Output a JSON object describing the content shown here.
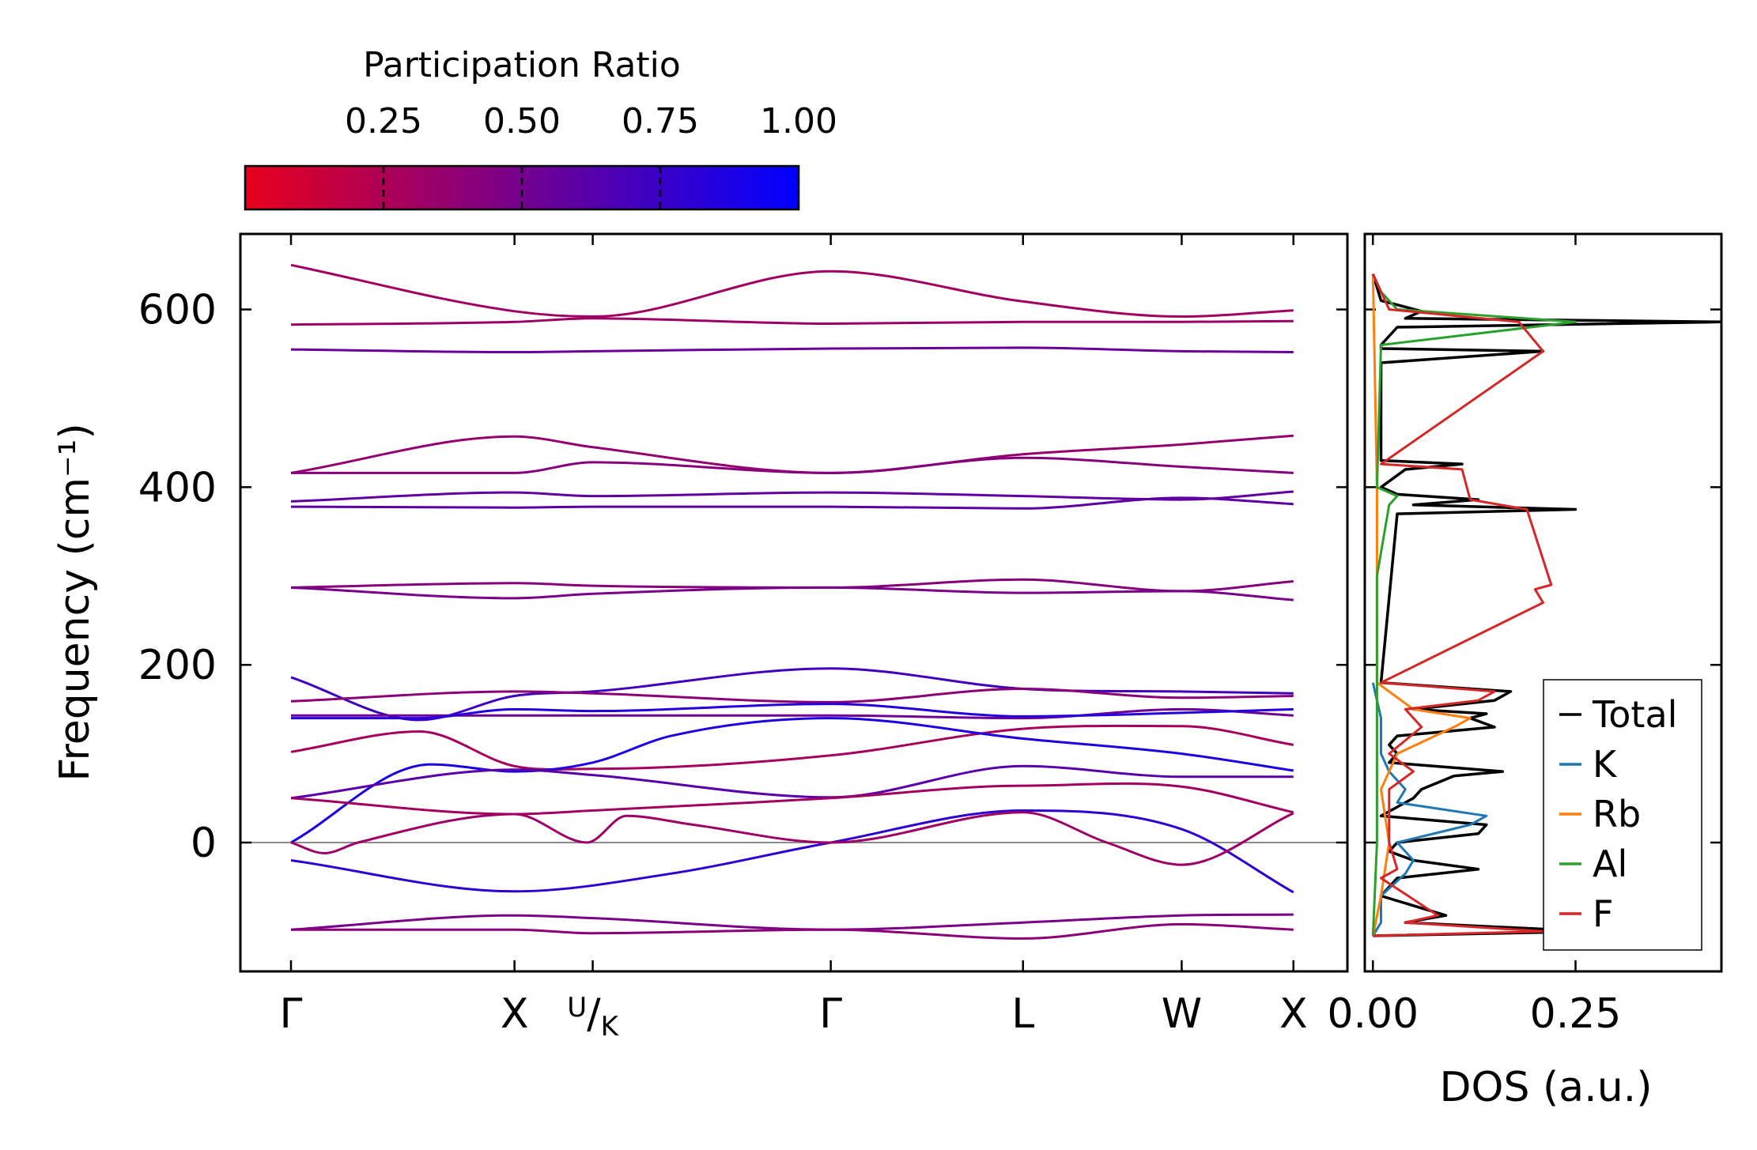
{
  "colors": {
    "low": "#e8001c",
    "high": "#0000ff",
    "zero_line": "#8c8c8c",
    "frame": "#000000"
  },
  "colorbar": {
    "title": "Participation Ratio",
    "range": [
      0.0,
      1.0
    ],
    "ticks": [
      {
        "value": 0.25,
        "label": "0.25"
      },
      {
        "value": 0.5,
        "label": "0.50"
      },
      {
        "value": 0.75,
        "label": "0.75"
      },
      {
        "value": 1.0,
        "label": "1.00"
      }
    ]
  },
  "chart_data": [
    {
      "type": "line",
      "title": "",
      "xlabel": "",
      "ylabel": "Frequency (cm⁻¹)",
      "ylim": [
        -145,
        685
      ],
      "yticks": [
        {
          "value": 0,
          "label": "0"
        },
        {
          "value": 200,
          "label": "200"
        },
        {
          "value": 400,
          "label": "400"
        },
        {
          "value": 600,
          "label": "600"
        }
      ],
      "xlim": [
        0,
        9.0
      ],
      "high_symmetry_points": [
        {
          "x": 0.0,
          "label": "Γ"
        },
        {
          "x": 2.0,
          "label": "X"
        },
        {
          "x": 2.7,
          "label": "U/K"
        },
        {
          "x": 4.83,
          "label": "Γ"
        },
        {
          "x": 6.55,
          "label": "L"
        },
        {
          "x": 7.97,
          "label": "W"
        },
        {
          "x": 8.97,
          "label": "X"
        }
      ],
      "color_encoding": "Participation Ratio",
      "series": [
        {
          "name": "band-1",
          "pr": 0.3,
          "x": [
            0,
            2.0,
            2.7,
            4.83,
            6.55,
            7.97,
            8.97
          ],
          "y": [
            650,
            598,
            592,
            643,
            609,
            592,
            599
          ]
        },
        {
          "name": "band-2",
          "pr": 0.33,
          "x": [
            0,
            2.0,
            2.7,
            4.83,
            6.55,
            7.97,
            8.97
          ],
          "y": [
            583,
            586,
            590,
            584,
            586,
            586,
            587
          ]
        },
        {
          "name": "band-3",
          "pr": 0.55,
          "x": [
            0,
            2.0,
            2.7,
            4.83,
            6.55,
            7.97,
            8.97
          ],
          "y": [
            555,
            552,
            553,
            556,
            557,
            553,
            552
          ]
        },
        {
          "name": "band-4",
          "pr": 0.36,
          "x": [
            0,
            2.0,
            2.7,
            4.83,
            6.55,
            7.97,
            8.97
          ],
          "y": [
            416,
            457,
            445,
            416,
            437,
            448,
            458
          ]
        },
        {
          "name": "band-5",
          "pr": 0.42,
          "x": [
            0,
            2.0,
            2.7,
            4.83,
            6.55,
            7.97,
            8.97
          ],
          "y": [
            416,
            416,
            428,
            416,
            433,
            423,
            416
          ]
        },
        {
          "name": "band-6",
          "pr": 0.58,
          "x": [
            0,
            2.0,
            2.7,
            4.83,
            6.55,
            7.97,
            8.97
          ],
          "y": [
            384,
            394,
            390,
            394,
            390,
            386,
            395
          ]
        },
        {
          "name": "band-7",
          "pr": 0.6,
          "x": [
            0,
            2.0,
            2.7,
            4.83,
            6.55,
            7.97,
            8.97
          ],
          "y": [
            378,
            377,
            378,
            378,
            376,
            388,
            381
          ]
        },
        {
          "name": "band-8",
          "pr": 0.42,
          "x": [
            0,
            2.0,
            2.7,
            4.83,
            6.55,
            7.97,
            8.97
          ],
          "y": [
            287,
            292,
            289,
            287,
            296,
            283,
            294
          ]
        },
        {
          "name": "band-9",
          "pr": 0.48,
          "x": [
            0,
            2.0,
            2.7,
            4.83,
            6.55,
            7.97,
            8.97
          ],
          "y": [
            287,
            275,
            280,
            287,
            281,
            283,
            273
          ]
        },
        {
          "name": "band-10",
          "pr": 0.72,
          "x": [
            0,
            1.15,
            2.0,
            2.7,
            4.83,
            6.55,
            7.97,
            8.97
          ],
          "y": [
            186,
            138,
            165,
            170,
            196,
            173,
            170,
            168
          ]
        },
        {
          "name": "band-11",
          "pr": 0.4,
          "x": [
            0,
            2.0,
            2.7,
            4.83,
            6.55,
            7.97,
            8.97
          ],
          "y": [
            159,
            170,
            168,
            158,
            173,
            163,
            165
          ]
        },
        {
          "name": "band-12",
          "pr": 0.52,
          "x": [
            0,
            2.0,
            2.7,
            4.83,
            6.55,
            7.97,
            8.97
          ],
          "y": [
            143,
            143,
            143,
            143,
            140,
            150,
            143
          ]
        },
        {
          "name": "band-13",
          "pr": 0.85,
          "x": [
            0,
            1.15,
            2.0,
            2.7,
            4.83,
            6.55,
            7.97,
            8.97
          ],
          "y": [
            140,
            140,
            150,
            148,
            156,
            142,
            146,
            150
          ]
        },
        {
          "name": "band-14",
          "pr": 0.28,
          "x": [
            0,
            1.15,
            2.0,
            2.7,
            4.83,
            6.55,
            7.97,
            8.97
          ],
          "y": [
            102,
            125,
            86,
            83,
            98,
            128,
            131,
            110
          ]
        },
        {
          "name": "band-15",
          "pr": 0.88,
          "x": [
            0,
            1.25,
            2.0,
            2.7,
            3.4,
            4.83,
            6.55,
            7.97,
            8.97
          ],
          "y": [
            0,
            88,
            80,
            90,
            120,
            140,
            117,
            100,
            81
          ]
        },
        {
          "name": "band-16",
          "pr": 0.62,
          "x": [
            0,
            2.0,
            2.7,
            4.83,
            6.55,
            7.97,
            8.97
          ],
          "y": [
            50,
            82,
            76,
            51,
            86,
            74,
            74
          ]
        },
        {
          "name": "band-17",
          "pr": 0.3,
          "x": [
            0,
            2.0,
            2.7,
            4.83,
            6.55,
            7.97,
            8.97
          ],
          "y": [
            50,
            32,
            36,
            50,
            64,
            63,
            34
          ]
        },
        {
          "name": "band-18",
          "pr": 0.8,
          "x": [
            0,
            2.0,
            3.4,
            4.83,
            6.55,
            7.97,
            8.97
          ],
          "y": [
            -20,
            -55,
            -35,
            0,
            36,
            15,
            -56
          ]
        },
        {
          "name": "band-19",
          "pr": 0.32,
          "x": [
            0,
            0.3,
            0.6,
            2.0,
            2.65,
            3.0,
            3.6,
            4.83,
            6.55,
            7.3,
            7.97,
            8.97
          ],
          "y": [
            0,
            -12,
            0,
            32,
            0,
            30,
            20,
            0,
            34,
            0,
            -25,
            33
          ]
        },
        {
          "name": "band-20",
          "pr": 0.48,
          "x": [
            0,
            2.0,
            2.7,
            4.83,
            6.55,
            7.97,
            8.97
          ],
          "y": [
            -98,
            -82,
            -85,
            -98,
            -90,
            -82,
            -81
          ]
        },
        {
          "name": "band-21",
          "pr": 0.4,
          "x": [
            0,
            2.0,
            2.7,
            4.83,
            6.55,
            7.97,
            8.97
          ],
          "y": [
            -98,
            -98,
            -102,
            -98,
            -108,
            -92,
            -98
          ]
        }
      ]
    },
    {
      "type": "line",
      "title": "",
      "xlabel": "DOS (a.u.)",
      "ylabel": "",
      "xlim": [
        -0.01,
        0.43
      ],
      "ylim": [
        -145,
        685
      ],
      "xticks": [
        {
          "value": 0.0,
          "label": "0.00"
        },
        {
          "value": 0.25,
          "label": "0.25"
        }
      ],
      "legend": {
        "position": "bottom-right",
        "entries": [
          "Total",
          "K",
          "Rb",
          "Al",
          "F"
        ]
      },
      "series": [
        {
          "name": "Total",
          "color": "#000000",
          "y": [
            -105,
            -100,
            -90,
            -82,
            -60,
            -40,
            -30,
            -20,
            -10,
            0,
            10,
            20,
            30,
            40,
            50,
            60,
            75,
            80,
            90,
            100,
            110,
            120,
            130,
            140,
            145,
            150,
            160,
            170,
            180,
            370,
            375,
            380,
            386,
            392,
            400,
            420,
            426,
            430,
            540,
            553,
            556,
            560,
            580,
            586,
            590,
            598,
            610,
            640
          ],
          "values": [
            0,
            0.27,
            0.04,
            0.09,
            0.01,
            0.03,
            0.13,
            0.05,
            0.02,
            0.03,
            0.13,
            0.14,
            0.01,
            0.03,
            0.05,
            0.06,
            0.1,
            0.16,
            0.02,
            0.03,
            0.02,
            0.03,
            0.15,
            0.12,
            0.14,
            0.05,
            0.15,
            0.17,
            0.01,
            0.03,
            0.25,
            0.05,
            0.13,
            0.03,
            0.01,
            0.04,
            0.11,
            0.01,
            0.01,
            0.21,
            0.01,
            0.01,
            0.03,
            0.43,
            0.04,
            0.06,
            0.01,
            0
          ]
        },
        {
          "name": "K",
          "color": "#1f77b4",
          "y": [
            -105,
            -90,
            -60,
            -35,
            -20,
            0,
            20,
            30,
            45,
            60,
            80,
            100,
            140,
            180
          ],
          "values": [
            0,
            0.01,
            0.01,
            0.04,
            0.05,
            0.03,
            0.12,
            0.14,
            0.03,
            0.04,
            0.02,
            0.01,
            0.01,
            0
          ]
        },
        {
          "name": "Rb",
          "color": "#ff7f0e",
          "y": [
            -105,
            -60,
            0,
            60,
            100,
            130,
            140,
            150,
            180,
            400,
            640
          ],
          "values": [
            0,
            0.01,
            0.02,
            0.01,
            0.03,
            0.1,
            0.12,
            0.05,
            0.005,
            0.005,
            0
          ]
        },
        {
          "name": "Al",
          "color": "#2ca02c",
          "y": [
            -105,
            0,
            100,
            200,
            300,
            380,
            390,
            400,
            560,
            586,
            600,
            620,
            640
          ],
          "values": [
            0,
            0.005,
            0.005,
            0.005,
            0.005,
            0.02,
            0.03,
            0.005,
            0.01,
            0.25,
            0.03,
            0.01,
            0
          ]
        },
        {
          "name": "F",
          "color": "#d62728",
          "y": [
            -105,
            -100,
            -90,
            -82,
            -40,
            -30,
            0,
            30,
            60,
            80,
            100,
            130,
            150,
            160,
            170,
            180,
            270,
            285,
            290,
            375,
            386,
            420,
            426,
            553,
            586,
            600,
            640
          ],
          "values": [
            0,
            0.21,
            0.04,
            0.08,
            0.01,
            0.03,
            0.02,
            0.02,
            0.02,
            0.05,
            0.02,
            0.06,
            0.04,
            0.13,
            0.15,
            0.01,
            0.21,
            0.2,
            0.22,
            0.19,
            0.12,
            0.11,
            0.01,
            0.21,
            0.18,
            0.02,
            0
          ]
        }
      ]
    }
  ]
}
